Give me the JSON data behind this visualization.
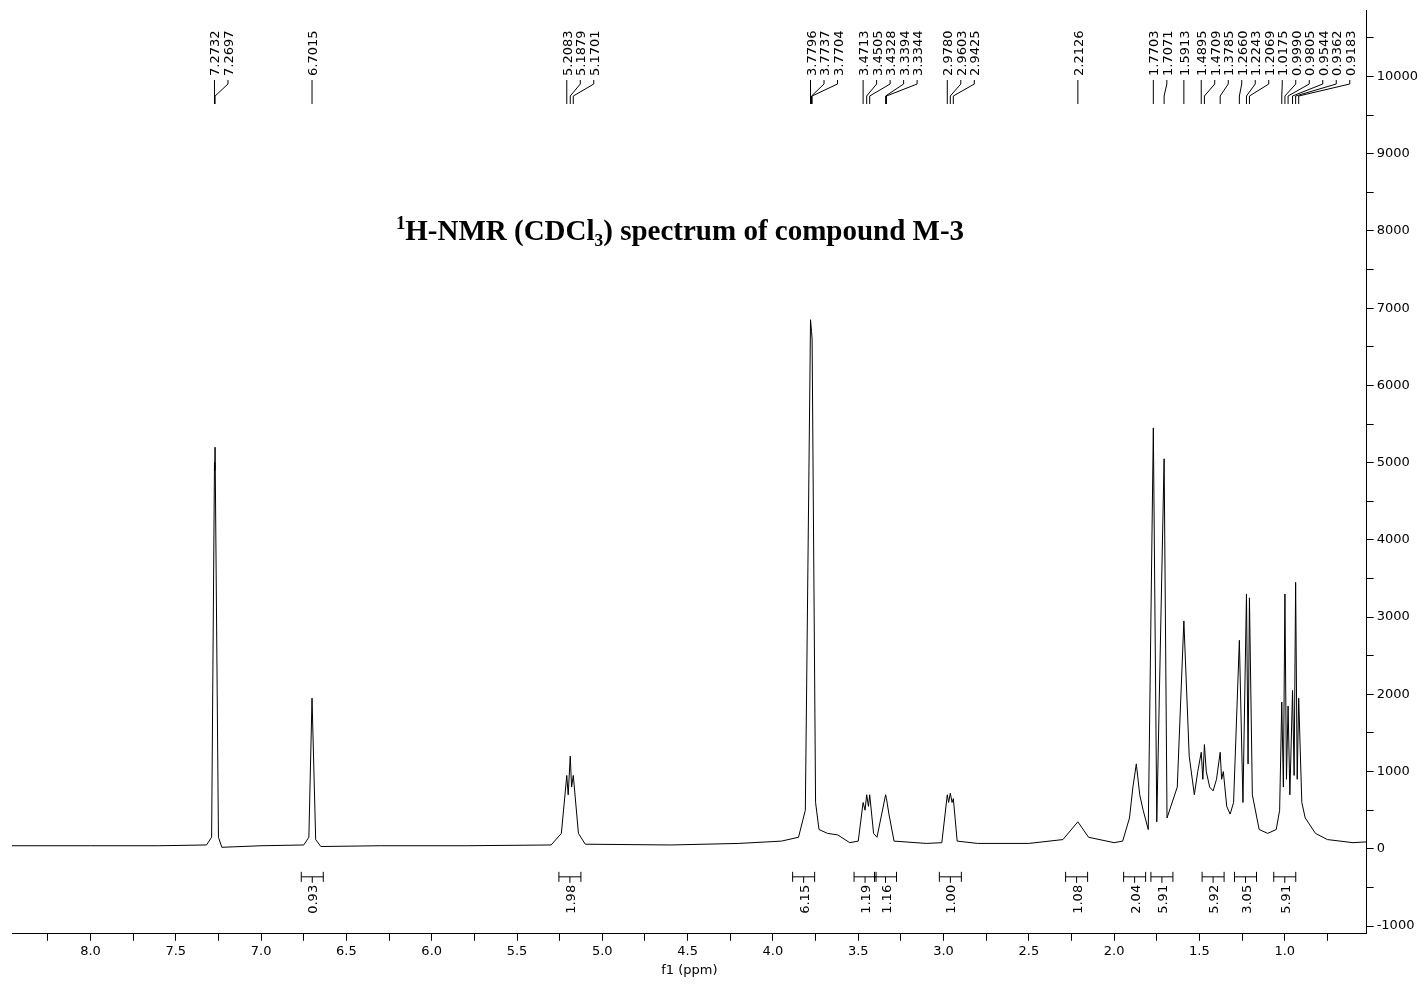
{
  "chart_data": {
    "type": "line",
    "title": "$^{1}$H-NMR (CDCl₃) spectrum of compound M-3",
    "xlabel": "f1 (ppm)",
    "xlim": [
      8.46,
      0.52
    ],
    "xticks": [
      {
        "value": 8.25,
        "label": null
      },
      {
        "value": 8,
        "label": "8.0"
      },
      {
        "value": 7.75,
        "label": null
      },
      {
        "value": 7.5,
        "label": "7.5"
      },
      {
        "value": 7.25,
        "label": null
      },
      {
        "value": 7,
        "label": "7.0"
      },
      {
        "value": 6.75,
        "label": null
      },
      {
        "value": 6.5,
        "label": "6.5"
      },
      {
        "value": 6.25,
        "label": null
      },
      {
        "value": 6,
        "label": "6.0"
      },
      {
        "value": 5.75,
        "label": null
      },
      {
        "value": 5.5,
        "label": "5.5"
      },
      {
        "value": 5.25,
        "label": null
      },
      {
        "value": 5,
        "label": "5.0"
      },
      {
        "value": 4.75,
        "label": null
      },
      {
        "value": 4.5,
        "label": "4.5"
      },
      {
        "value": 4.25,
        "label": null
      },
      {
        "value": 4,
        "label": "4.0"
      },
      {
        "value": 3.75,
        "label": null
      },
      {
        "value": 3.5,
        "label": "3.5"
      },
      {
        "value": 3.25,
        "label": null
      },
      {
        "value": 3,
        "label": "3.0"
      },
      {
        "value": 2.75,
        "label": null
      },
      {
        "value": 2.5,
        "label": "2.5"
      },
      {
        "value": 2.25,
        "label": null
      },
      {
        "value": 2,
        "label": "2.0"
      },
      {
        "value": 1.75,
        "label": null
      },
      {
        "value": 1.5,
        "label": "1.5"
      },
      {
        "value": 1.25,
        "label": null
      },
      {
        "value": 1,
        "label": "1.0"
      },
      {
        "value": 0.75,
        "label": null
      }
    ],
    "ylim": [
      -1100,
      10850
    ],
    "yticks": [
      -1000,
      {
        "value": -500,
        "label": null
      },
      0,
      {
        "value": 500,
        "label": null
      },
      1000,
      {
        "value": 1500,
        "label": null
      },
      2000,
      {
        "value": 2500,
        "label": null
      },
      3000,
      {
        "value": 3500,
        "label": null
      },
      4000,
      {
        "value": 4500,
        "label": null
      },
      5000,
      {
        "value": 5500,
        "label": null
      },
      6000,
      {
        "value": 6500,
        "label": null
      },
      7000,
      {
        "value": 7500,
        "label": null
      },
      8000,
      {
        "value": 8500,
        "label": null
      },
      9000,
      {
        "value": 9500,
        "label": null
      },
      10000,
      {
        "value": 10500,
        "label": null
      }
    ],
    "grid": false,
    "legend": false,
    "marker": "none",
    "line_style": "solid",
    "series": [
      {
        "color": "#000000",
        "x": [
          8.46,
          8.0,
          7.6,
          7.32,
          7.29,
          7.2732,
          7.2715,
          7.2697,
          7.25,
          7.23,
          7.0,
          6.75,
          6.72,
          6.7015,
          6.68,
          6.65,
          6.3,
          5.8,
          5.3,
          5.24,
          5.2083,
          5.2,
          5.1879,
          5.18,
          5.1701,
          5.14,
          5.1,
          4.6,
          4.2,
          3.95,
          3.85,
          3.81,
          3.7796,
          3.7737,
          3.7704,
          3.75,
          3.73,
          3.68,
          3.62,
          3.55,
          3.5,
          3.4713,
          3.46,
          3.4505,
          3.44,
          3.4328,
          3.41,
          3.39,
          3.3394,
          3.3344,
          3.32,
          3.29,
          3.1,
          3.01,
          2.978,
          2.97,
          2.9603,
          2.95,
          2.9425,
          2.92,
          2.8,
          2.5,
          2.3,
          2.2126,
          2.15,
          2.0,
          1.95,
          1.91,
          1.89,
          1.87,
          1.85,
          1.83,
          1.8,
          1.7703,
          1.75,
          1.7071,
          1.69,
          1.63,
          1.5913,
          1.56,
          1.53,
          1.51,
          1.4895,
          1.48,
          1.4709,
          1.46,
          1.44,
          1.42,
          1.4,
          1.3785,
          1.37,
          1.36,
          1.34,
          1.32,
          1.3,
          1.266,
          1.245,
          1.2243,
          1.215,
          1.2069,
          1.19,
          1.15,
          1.1,
          1.05,
          1.03,
          1.0175,
          1.008,
          0.999,
          0.99,
          0.9805,
          0.97,
          0.9544,
          0.945,
          0.9362,
          0.927,
          0.9183,
          0.9,
          0.88,
          0.82,
          0.75,
          0.6,
          0.52
        ],
        "values": [
          40,
          40,
          40,
          50,
          150,
          5000,
          4900,
          5200,
          150,
          20,
          40,
          50,
          150,
          1950,
          120,
          30,
          40,
          40,
          50,
          200,
          950,
          700,
          1200,
          800,
          950,
          200,
          60,
          50,
          70,
          100,
          150,
          500,
          6850,
          6700,
          6600,
          600,
          250,
          200,
          180,
          80,
          100,
          600,
          500,
          700,
          550,
          700,
          200,
          150,
          700,
          650,
          450,
          100,
          70,
          80,
          700,
          600,
          720,
          600,
          650,
          100,
          70,
          70,
          120,
          350,
          150,
          80,
          100,
          400,
          800,
          1100,
          700,
          500,
          250,
          5450,
          350,
          5050,
          400,
          800,
          2950,
          1200,
          700,
          1000,
          1250,
          900,
          1350,
          1000,
          800,
          750,
          900,
          1250,
          900,
          1000,
          550,
          450,
          600,
          2700,
          600,
          3300,
          1100,
          3250,
          700,
          250,
          200,
          250,
          500,
          1900,
          800,
          3300,
          900,
          1850,
          700,
          2050,
          950,
          3450,
          900,
          1950,
          600,
          400,
          200,
          120,
          80,
          90
        ]
      }
    ],
    "annotations": [
      {
        "text": "7.2732",
        "x": 7.2732
      },
      {
        "text": "7.2697",
        "x": 7.2697
      },
      {
        "text": "6.7015",
        "x": 6.7015
      },
      {
        "text": "5.2083",
        "x": 5.2083
      },
      {
        "text": "5.1879",
        "x": 5.1879
      },
      {
        "text": "5.1701",
        "x": 5.1701
      },
      {
        "text": "3.7796",
        "x": 3.7796
      },
      {
        "text": "3.7737",
        "x": 3.7737
      },
      {
        "text": "3.7704",
        "x": 3.7704
      },
      {
        "text": "3.4713",
        "x": 3.4713
      },
      {
        "text": "3.4505",
        "x": 3.4505
      },
      {
        "text": "3.4328",
        "x": 3.4328
      },
      {
        "text": "3.3394",
        "x": 3.3394
      },
      {
        "text": "3.3344",
        "x": 3.3344
      },
      {
        "text": "2.9780",
        "x": 2.978
      },
      {
        "text": "2.9603",
        "x": 2.9603
      },
      {
        "text": "2.9425",
        "x": 2.9425
      },
      {
        "text": "2.2126",
        "x": 2.2126
      },
      {
        "text": "1.7703",
        "x": 1.7703
      },
      {
        "text": "1.7071",
        "x": 1.7071
      },
      {
        "text": "1.5913",
        "x": 1.5913
      },
      {
        "text": "1.4895",
        "x": 1.4895
      },
      {
        "text": "1.4709",
        "x": 1.4709
      },
      {
        "text": "1.3785",
        "x": 1.3785
      },
      {
        "text": "1.2660",
        "x": 1.266
      },
      {
        "text": "1.2243",
        "x": 1.2243
      },
      {
        "text": "1.2069",
        "x": 1.2069
      },
      {
        "text": "1.0175",
        "x": 1.0175
      },
      {
        "text": "0.9990",
        "x": 0.999
      },
      {
        "text": "0.9805",
        "x": 0.9805
      },
      {
        "text": "0.9544",
        "x": 0.9544
      },
      {
        "text": "0.9362",
        "x": 0.9362
      },
      {
        "text": "0.9183",
        "x": 0.9183
      },
      {
        "text": "0.93",
        "x": 6.7
      },
      {
        "text": "1.98",
        "x": 5.19
      },
      {
        "text": "6.15",
        "x": 3.82
      },
      {
        "text": "1.19",
        "x": 3.46
      },
      {
        "text": "1.16",
        "x": 3.34
      },
      {
        "text": "1.00",
        "x": 2.96
      },
      {
        "text": "1.08",
        "x": 2.22
      },
      {
        "text": "2.04",
        "x": 1.88
      },
      {
        "text": "5.91",
        "x": 1.72
      },
      {
        "text": "5.92",
        "x": 1.42
      },
      {
        "text": "3.05",
        "x": 1.23
      },
      {
        "text": "5.91",
        "x": 1.0
      }
    ]
  }
}
